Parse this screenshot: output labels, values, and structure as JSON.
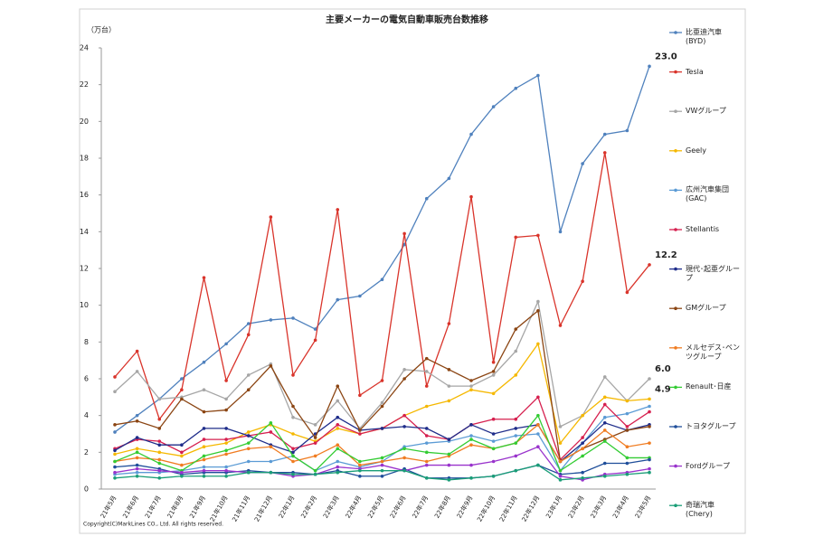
{
  "chart_data": {
    "type": "line",
    "title": "主要メーカーの電気自動車販売台数推移",
    "y_label": "（万台）",
    "footnote": "Copyright(C)MarkLines CO., Ltd. All rights reserved.",
    "categories": [
      "21年5月",
      "21年6月",
      "21年7月",
      "21年8月",
      "21年9月",
      "21年10月",
      "21年11月",
      "21年12月",
      "22年1月",
      "22年2月",
      "22年3月",
      "22年4月",
      "22年5月",
      "22年6月",
      "22年7月",
      "22年8月",
      "22年9月",
      "22年10月",
      "22年11月",
      "22年12月",
      "23年1月",
      "23年2月",
      "23年3月",
      "23年4月",
      "23年5月"
    ],
    "ylim": [
      0,
      24
    ],
    "yticks": [
      0,
      2,
      4,
      6,
      8,
      10,
      12,
      14,
      16,
      18,
      20,
      22,
      24
    ],
    "grid": false,
    "series": [
      {
        "name": "比亜迪汽車 (BYD)",
        "color": "#4f81bd",
        "values": [
          3.1,
          4.0,
          4.9,
          6.0,
          6.9,
          7.9,
          9.0,
          9.2,
          9.3,
          8.7,
          10.3,
          10.5,
          11.4,
          13.3,
          15.8,
          16.9,
          19.3,
          20.8,
          21.8,
          22.5,
          14.0,
          17.7,
          19.3,
          19.5,
          23.0
        ],
        "value_labels": [
          null,
          null,
          null,
          null,
          null,
          null,
          null,
          null,
          null,
          null,
          null,
          null,
          null,
          null,
          null,
          null,
          null,
          null,
          null,
          null,
          null,
          null,
          null,
          null,
          "23.0"
        ]
      },
      {
        "name": "Tesla",
        "color": "#d9342b",
        "values": [
          6.1,
          7.5,
          3.8,
          5.4,
          11.5,
          5.9,
          8.4,
          14.8,
          6.2,
          8.1,
          15.2,
          5.1,
          5.9,
          13.9,
          5.6,
          9.0,
          15.9,
          6.9,
          13.7,
          13.8,
          8.9,
          11.3,
          18.3,
          10.7,
          12.2
        ],
        "value_labels": [
          null,
          null,
          null,
          null,
          null,
          null,
          null,
          null,
          null,
          null,
          null,
          null,
          null,
          null,
          null,
          null,
          null,
          null,
          null,
          null,
          null,
          null,
          null,
          null,
          "12.2"
        ]
      },
      {
        "name": "VWグループ",
        "color": "#a6a6a6",
        "values": [
          5.3,
          6.4,
          4.9,
          5.0,
          5.4,
          4.9,
          6.2,
          6.8,
          3.9,
          3.5,
          4.8,
          3.3,
          4.7,
          6.5,
          6.4,
          5.6,
          5.6,
          6.2,
          7.5,
          10.2,
          3.4,
          4.0,
          6.1,
          4.8,
          6.0
        ],
        "value_labels": [
          null,
          null,
          null,
          null,
          null,
          null,
          null,
          null,
          null,
          null,
          null,
          null,
          null,
          null,
          null,
          null,
          null,
          null,
          null,
          null,
          null,
          null,
          null,
          null,
          "6.0"
        ]
      },
      {
        "name": "Geely",
        "color": "#f5b800",
        "values": [
          1.9,
          2.2,
          2.0,
          1.8,
          2.3,
          2.5,
          3.1,
          3.5,
          3.0,
          2.6,
          3.3,
          3.0,
          3.3,
          4.0,
          4.5,
          4.8,
          5.4,
          5.2,
          6.2,
          7.9,
          2.5,
          4.0,
          5.0,
          4.8,
          4.9
        ],
        "value_labels": [
          null,
          null,
          null,
          null,
          null,
          null,
          null,
          null,
          null,
          null,
          null,
          null,
          null,
          null,
          null,
          null,
          null,
          null,
          null,
          null,
          null,
          null,
          null,
          null,
          "4.9"
        ]
      },
      {
        "name": "広州汽車集団 (GAC)",
        "color": "#5b9bd5",
        "values": [
          0.8,
          0.9,
          0.9,
          1.0,
          1.2,
          1.2,
          1.5,
          1.5,
          1.8,
          1.0,
          1.5,
          1.2,
          1.5,
          2.3,
          2.5,
          2.6,
          2.9,
          2.6,
          2.9,
          3.0,
          1.0,
          2.5,
          3.9,
          4.1,
          4.5
        ]
      },
      {
        "name": "Stellantis",
        "color": "#d6204f",
        "values": [
          2.2,
          2.7,
          2.6,
          2.0,
          2.7,
          2.7,
          2.9,
          3.1,
          2.2,
          2.5,
          3.5,
          3.0,
          3.3,
          4.0,
          2.9,
          2.7,
          3.5,
          3.8,
          3.8,
          5.0,
          1.6,
          2.8,
          4.6,
          3.4,
          4.2
        ]
      },
      {
        "name": "現代･起亜グループ",
        "color": "#1f2d8a",
        "values": [
          2.1,
          2.8,
          2.4,
          2.4,
          3.3,
          3.3,
          2.9,
          2.4,
          2.0,
          3.0,
          3.9,
          3.2,
          3.3,
          3.4,
          3.3,
          2.7,
          3.5,
          3.0,
          3.3,
          3.5,
          1.5,
          2.5,
          3.6,
          3.2,
          3.5
        ]
      },
      {
        "name": "GMグループ",
        "color": "#8b4513",
        "values": [
          3.5,
          3.7,
          3.3,
          4.9,
          4.2,
          4.3,
          5.4,
          6.7,
          4.5,
          2.8,
          5.6,
          3.2,
          4.5,
          6.0,
          7.1,
          6.5,
          5.9,
          6.4,
          8.7,
          9.7,
          1.5,
          2.2,
          2.7,
          3.2,
          3.4
        ]
      },
      {
        "name": "メルセデス･ベンツグループ",
        "color": "#f07c21",
        "values": [
          1.5,
          1.7,
          1.6,
          1.3,
          1.6,
          1.9,
          2.2,
          2.3,
          1.5,
          1.8,
          2.4,
          1.3,
          1.5,
          1.7,
          1.5,
          1.8,
          2.4,
          2.2,
          2.5,
          3.5,
          1.5,
          2.2,
          3.2,
          2.3,
          2.5
        ]
      },
      {
        "name": "Renault･日産",
        "color": "#33cc33",
        "values": [
          1.5,
          2.0,
          1.4,
          1.0,
          1.8,
          2.1,
          2.5,
          3.6,
          1.8,
          1.0,
          2.2,
          1.5,
          1.7,
          2.2,
          2.0,
          1.9,
          2.7,
          2.2,
          2.5,
          4.0,
          1.0,
          1.8,
          2.6,
          1.7,
          1.7
        ]
      },
      {
        "name": "トヨタグループ",
        "color": "#1f4e9a",
        "values": [
          1.2,
          1.3,
          1.1,
          0.8,
          0.9,
          0.9,
          1.0,
          0.9,
          0.9,
          0.8,
          1.0,
          0.7,
          0.7,
          1.1,
          0.6,
          0.6,
          0.6,
          0.7,
          1.0,
          1.3,
          0.8,
          0.9,
          1.4,
          1.4,
          1.6
        ]
      },
      {
        "name": "Fordグループ",
        "color": "#9933cc",
        "values": [
          0.9,
          1.1,
          1.0,
          0.9,
          1.0,
          1.0,
          0.9,
          0.9,
          0.7,
          0.8,
          1.2,
          1.1,
          1.3,
          1.0,
          1.3,
          1.3,
          1.3,
          1.5,
          1.8,
          2.3,
          0.7,
          0.5,
          0.8,
          0.9,
          1.1
        ]
      },
      {
        "name": "奇瑞汽車 (Chery)",
        "color": "#1a9e77",
        "values": [
          0.6,
          0.7,
          0.6,
          0.7,
          0.7,
          0.7,
          0.9,
          0.9,
          0.8,
          0.8,
          0.9,
          1.0,
          1.0,
          1.0,
          0.6,
          0.5,
          0.6,
          0.7,
          1.0,
          1.3,
          0.5,
          0.6,
          0.7,
          0.8,
          0.9
        ]
      }
    ]
  }
}
